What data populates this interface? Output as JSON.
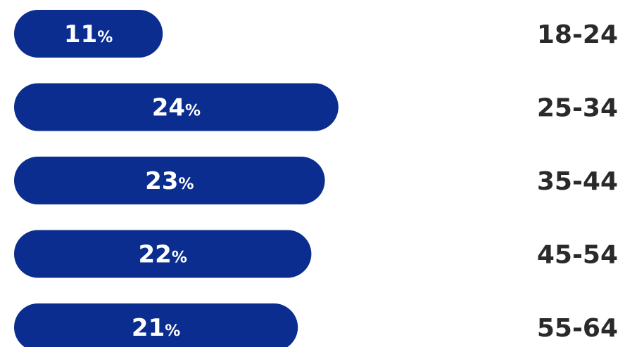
{
  "chart_data": {
    "type": "bar",
    "orientation": "horizontal",
    "categories": [
      "18-24",
      "25-34",
      "35-44",
      "45-54",
      "55-64"
    ],
    "values": [
      11,
      24,
      23,
      22,
      21
    ],
    "value_suffix": "%",
    "title": "",
    "xlabel": "",
    "ylabel": "",
    "grid": false,
    "legend": "none",
    "colors": {
      "bar": "#0a2d8f",
      "bar_text": "#ffffff",
      "label_text": "#2a2a2a",
      "background": "#ffffff"
    }
  }
}
